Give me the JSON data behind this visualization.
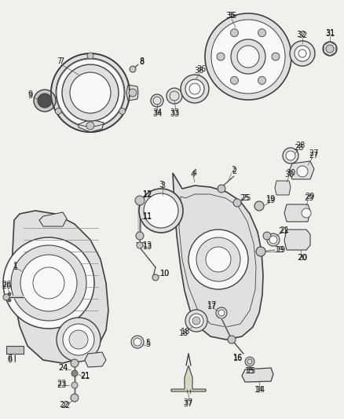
{
  "background_color": "#f0f0ec",
  "line_color": "#404040",
  "label_color": "#222222",
  "label_fontsize": 7.0,
  "fill_light": "#e0e0e0",
  "fill_dark": "#c8c8c8",
  "fill_white": "#f8f8f8"
}
